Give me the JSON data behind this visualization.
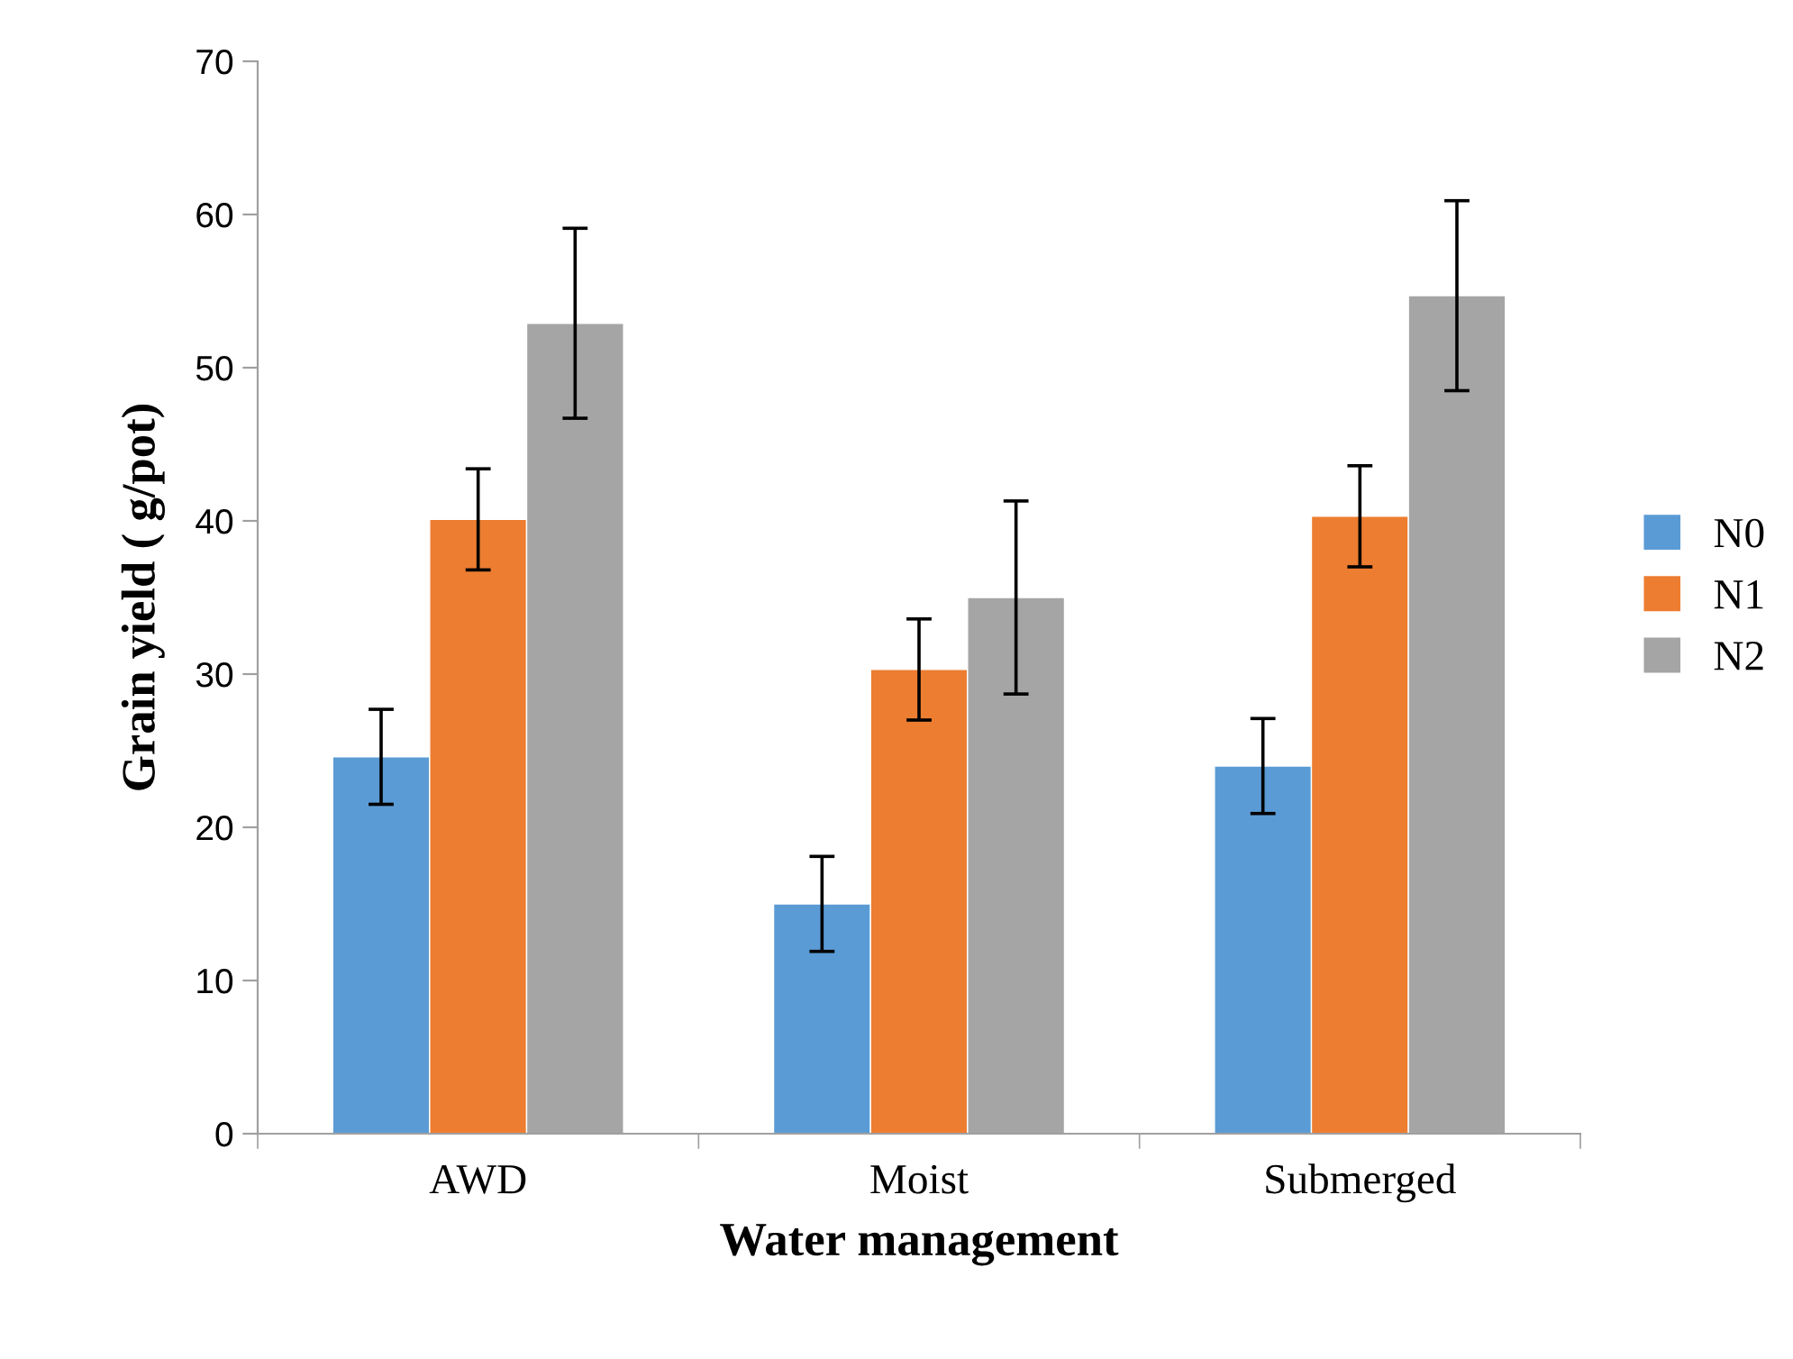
{
  "chart_data": {
    "type": "bar",
    "xlabel": "Water management",
    "ylabel": "Grain yield ( g/pot)",
    "categories": [
      "AWD",
      "Moist",
      "Submerged"
    ],
    "series": [
      {
        "name": "N0",
        "color": "#5b9bd5",
        "values": [
          24.6,
          15.0,
          24.0
        ],
        "errors": [
          3.1,
          3.1,
          3.1
        ]
      },
      {
        "name": "N1",
        "color": "#ed7d31",
        "values": [
          40.1,
          30.3,
          40.3
        ],
        "errors": [
          3.3,
          3.3,
          3.3
        ]
      },
      {
        "name": "N2",
        "color": "#a5a5a5",
        "values": [
          52.9,
          35.0,
          54.7
        ],
        "errors": [
          6.2,
          6.3,
          6.2
        ]
      }
    ],
    "ylim": [
      0,
      70
    ],
    "yticks": [
      0,
      10,
      20,
      30,
      40,
      50,
      60,
      70
    ],
    "grid": false,
    "legend": "right"
  }
}
